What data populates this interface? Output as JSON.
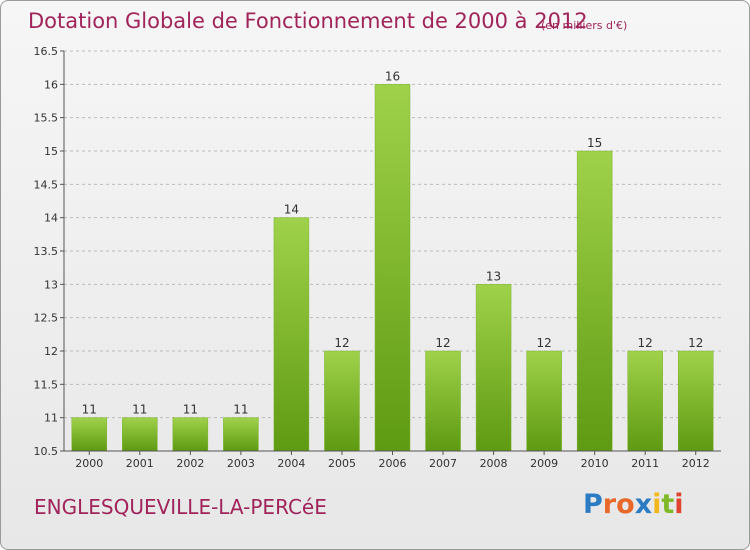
{
  "header": {
    "title": "Dotation Globale de Fonctionnement de 2000 à 2012",
    "unit": "(en milliers d'€)"
  },
  "footer": {
    "commune": "ENGLESQUEVILLE-LA-PERCéE",
    "logo_text": "Proxiti"
  },
  "colors": {
    "title": "#a0245a",
    "bar_top": "#9fd24a",
    "bar_bottom": "#5e9a12",
    "grid": "#bbbbbb",
    "logo": [
      "#2c7cc4",
      "#e8682a",
      "#e8682a",
      "#2c7cc4",
      "#f0b81e",
      "#7fb928",
      "#e0442e"
    ]
  },
  "chart_data": {
    "type": "bar",
    "title": "Dotation Globale de Fonctionnement de 2000 à 2012",
    "xlabel": "",
    "ylabel": "",
    "categories": [
      "2000",
      "2001",
      "2002",
      "2003",
      "2004",
      "2005",
      "2006",
      "2007",
      "2008",
      "2009",
      "2010",
      "2011",
      "2012"
    ],
    "values": [
      11,
      11,
      11,
      11,
      14,
      12,
      16,
      12,
      13,
      12,
      15,
      12,
      12
    ],
    "data_labels": [
      "11",
      "11",
      "11",
      "11",
      "14",
      "12",
      "16",
      "12",
      "13",
      "12",
      "15",
      "12",
      "12"
    ],
    "ylim": [
      10.5,
      16.5
    ],
    "yticks": [
      10.5,
      11,
      11.5,
      12,
      12.5,
      13,
      13.5,
      14,
      14.5,
      15,
      15.5,
      16,
      16.5
    ],
    "ytick_labels": [
      "10.5",
      "11",
      "11.5",
      "12",
      "12.5",
      "13",
      "13.5",
      "14",
      "14.5",
      "15",
      "15.5",
      "16",
      "16.5"
    ],
    "grid": true,
    "legend": "none"
  }
}
